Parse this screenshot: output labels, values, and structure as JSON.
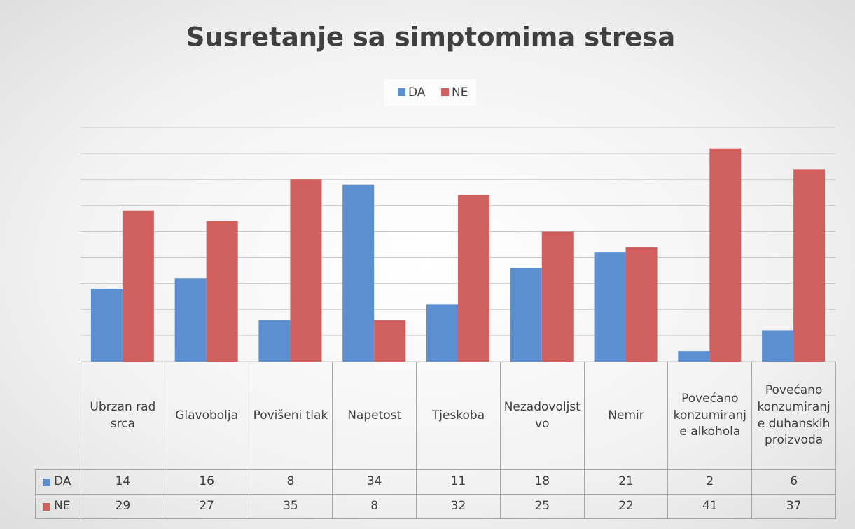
{
  "chart_data": {
    "type": "bar",
    "title": "Susretanje sa simptomima stresa",
    "categories": [
      "Ubrzan rad srca",
      "Glavobolja",
      "Povišeni tlak",
      "Napetost",
      "Tjeskoba",
      "Nezadovoljstvo",
      "Nemir",
      "Povećano konzumiranje alkohola",
      "Povećano konzumiranje duhanskih proizvoda"
    ],
    "series": [
      {
        "name": "DA",
        "color": "#5b8fd0",
        "values": [
          14,
          16,
          8,
          34,
          11,
          18,
          21,
          2,
          6
        ]
      },
      {
        "name": "NE",
        "color": "#d0605e",
        "values": [
          29,
          27,
          35,
          8,
          32,
          25,
          22,
          41,
          37
        ]
      }
    ],
    "ylim": [
      0,
      45
    ],
    "yticks": [
      0,
      5,
      10,
      15,
      20,
      25,
      30,
      35,
      40,
      45
    ],
    "grid": true,
    "legend": "top"
  }
}
